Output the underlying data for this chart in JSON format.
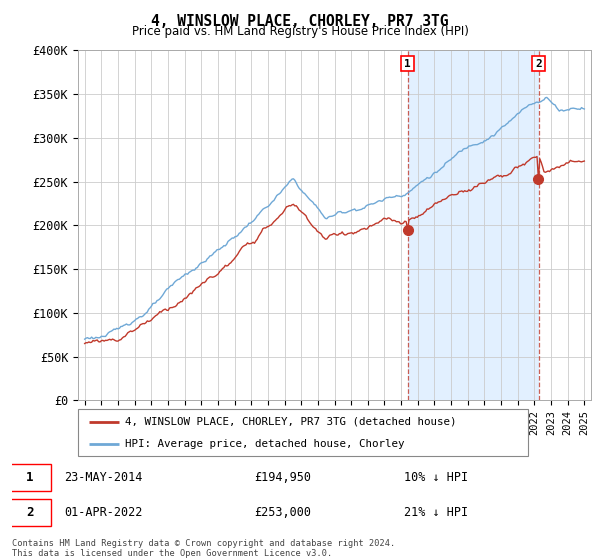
{
  "title": "4, WINSLOW PLACE, CHORLEY, PR7 3TG",
  "subtitle": "Price paid vs. HM Land Registry's House Price Index (HPI)",
  "ylim": [
    0,
    400000
  ],
  "yticks": [
    0,
    50000,
    100000,
    150000,
    200000,
    250000,
    300000,
    350000,
    400000
  ],
  "ytick_labels": [
    "£0",
    "£50K",
    "£100K",
    "£150K",
    "£200K",
    "£250K",
    "£300K",
    "£350K",
    "£400K"
  ],
  "hpi_color": "#6fa8d6",
  "price_color": "#c0392b",
  "shade_color": "#ddeeff",
  "sale1_year": 2014.39,
  "sale1_value": 194950,
  "sale2_year": 2022.25,
  "sale2_value": 253000,
  "legend_price_label": "4, WINSLOW PLACE, CHORLEY, PR7 3TG (detached house)",
  "legend_hpi_label": "HPI: Average price, detached house, Chorley",
  "note1_date": "23-MAY-2014",
  "note1_price": "£194,950",
  "note1_hpi": "10% ↓ HPI",
  "note2_date": "01-APR-2022",
  "note2_price": "£253,000",
  "note2_hpi": "21% ↓ HPI",
  "footer": "Contains HM Land Registry data © Crown copyright and database right 2024.\nThis data is licensed under the Open Government Licence v3.0.",
  "background_color": "#ffffff",
  "grid_color": "#cccccc",
  "xstart": 1995,
  "xend": 2025
}
